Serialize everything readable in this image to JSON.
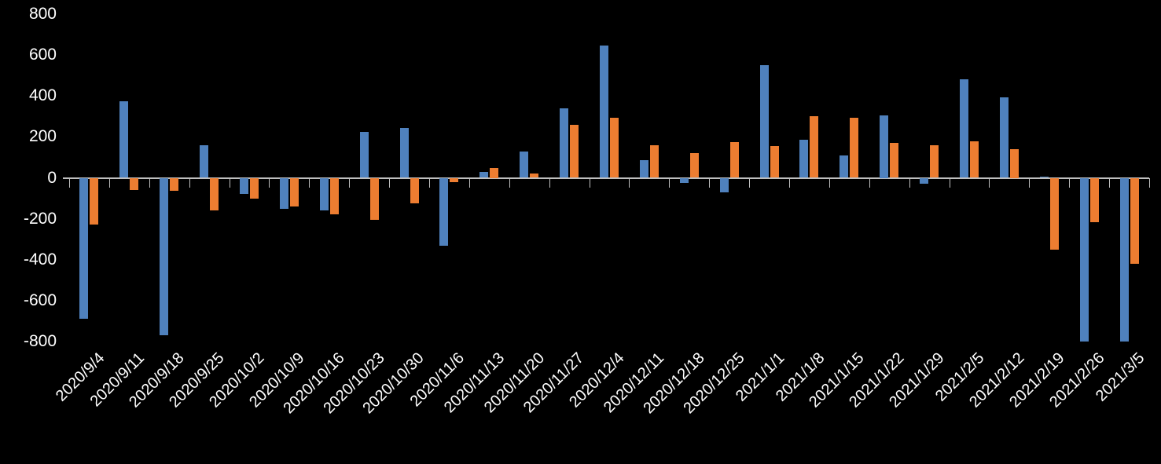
{
  "chart_data": {
    "type": "bar",
    "title": "",
    "xlabel": "",
    "ylabel": "",
    "categories": [
      "2020/9/4",
      "2020/9/11",
      "2020/9/18",
      "2020/9/25",
      "2020/10/2",
      "2020/10/9",
      "2020/10/16",
      "2020/10/23",
      "2020/10/30",
      "2020/11/6",
      "2020/11/13",
      "2020/11/20",
      "2020/11/27",
      "2020/12/4",
      "2020/12/11",
      "2020/12/18",
      "2020/12/25",
      "2021/1/1",
      "2021/1/8",
      "2021/1/15",
      "2021/1/22",
      "2021/1/29",
      "2021/2/5",
      "2021/2/12",
      "2021/2/19",
      "2021/2/26",
      "2021/3/5"
    ],
    "series": [
      {
        "name": "series-blue",
        "color": "#4F81BD",
        "values": [
          -690,
          375,
          -770,
          160,
          -80,
          -150,
          -160,
          225,
          245,
          -330,
          30,
          130,
          340,
          645,
          85,
          -25,
          -70,
          550,
          185,
          110,
          305,
          -30,
          480,
          395,
          5,
          -800,
          -800
        ]
      },
      {
        "name": "series-orange",
        "color": "#ED7D31",
        "values": [
          -230,
          -60,
          -65,
          -160,
          -100,
          -140,
          -180,
          -205,
          -125,
          -20,
          50,
          20,
          260,
          295,
          160,
          120,
          175,
          155,
          300,
          295,
          170,
          160,
          180,
          140,
          -350,
          -215,
          -420
        ]
      }
    ],
    "ylim": [
      -800,
      800
    ],
    "ytick_interval": 200,
    "yticks": [
      800,
      600,
      400,
      200,
      0,
      -200,
      -400,
      -600,
      -800
    ],
    "grid": false,
    "legend_position": "none",
    "background_color": "#000000",
    "axis_color": "#BFBFBF",
    "label_color": "#FFFFFF",
    "x_label_rotation_deg": -45
  }
}
